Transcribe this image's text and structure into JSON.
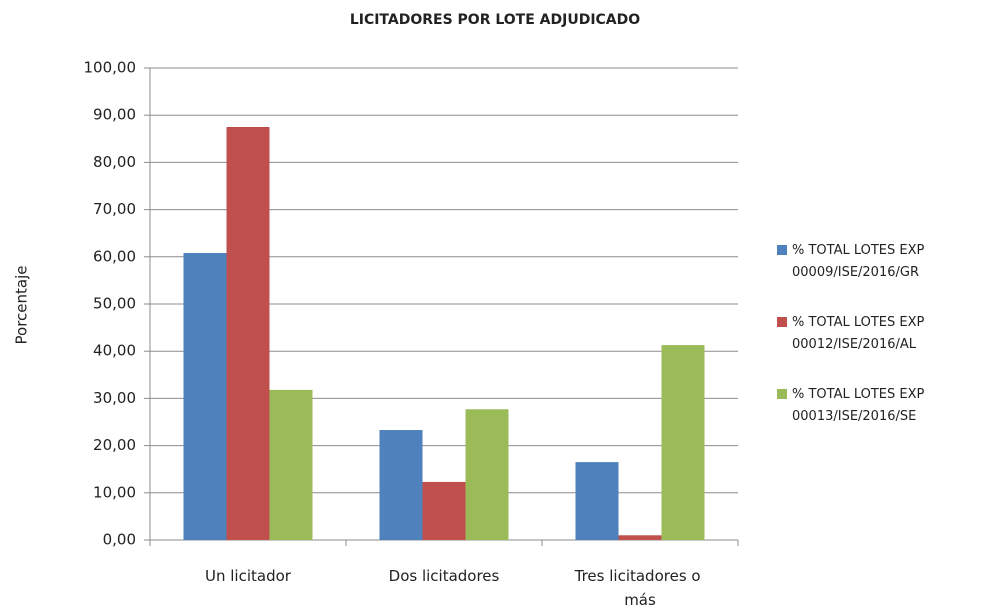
{
  "chart_data": {
    "type": "bar",
    "title": "LICITADORES POR LOTE ADJUDICADO",
    "y_label": "Porcentaje",
    "categories": [
      "Un licitador",
      "Dos licitadores",
      "Tres licitadores o más"
    ],
    "series": [
      {
        "name": "% TOTAL LOTES EXP 00009/ISE/2016/GR",
        "color": "#4f81bd",
        "values": [
          60.8,
          23.3,
          16.5
        ]
      },
      {
        "name": "% TOTAL LOTES EXP 00012/ISE/2016/AL",
        "color": "#c0504d",
        "values": [
          87.5,
          12.3,
          1.0
        ]
      },
      {
        "name": "% TOTAL LOTES EXP 00013/ISE/2016/SE",
        "color": "#9bbb59",
        "values": [
          31.8,
          27.7,
          41.3
        ]
      }
    ],
    "ylim": [
      0,
      100
    ],
    "yticks": [
      {
        "value": 0,
        "label": "0,00"
      },
      {
        "value": 10,
        "label": "10,00"
      },
      {
        "value": 20,
        "label": "20,00"
      },
      {
        "value": 30,
        "label": "30,00"
      },
      {
        "value": 40,
        "label": "40,00"
      },
      {
        "value": 50,
        "label": "50,00"
      },
      {
        "value": 60,
        "label": "60,00"
      },
      {
        "value": 70,
        "label": "70,00"
      },
      {
        "value": 80,
        "label": "80,00"
      },
      {
        "value": 90,
        "label": "90,00"
      },
      {
        "value": 100,
        "label": "100,00"
      }
    ],
    "grid": true,
    "legend": "right"
  }
}
